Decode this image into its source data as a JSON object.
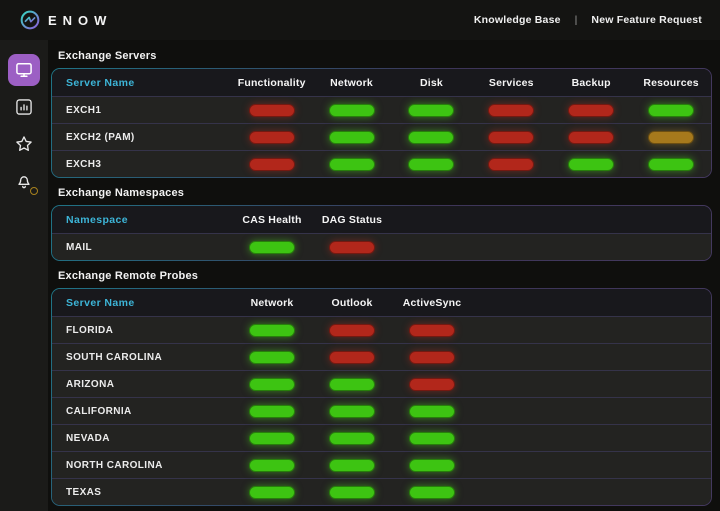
{
  "header": {
    "brand": "ENOW",
    "links": [
      {
        "label": "Knowledge Base"
      },
      {
        "label": "New Feature Request"
      }
    ],
    "divider": "|"
  },
  "sidebar": {
    "items": [
      {
        "id": "dashboard",
        "icon": "monitor-icon",
        "active": true,
        "badge": false
      },
      {
        "id": "reports",
        "icon": "bar-chart-icon",
        "active": false,
        "badge": false
      },
      {
        "id": "favorites",
        "icon": "star-icon",
        "active": false,
        "badge": false
      },
      {
        "id": "alerts",
        "icon": "bell-icon",
        "active": false,
        "badge": true
      }
    ]
  },
  "colors": {
    "green": "#3dc412",
    "red": "#b2271b",
    "yellow": "#a6791c",
    "accent_purple": "#9c5fc4",
    "accent_teal": "#3db5d8",
    "badge_gold": "#a8821e"
  },
  "sections": [
    {
      "title": "Exchange Servers",
      "name_header": "Server Name",
      "columns": [
        "Functionality",
        "Network",
        "Disk",
        "Services",
        "Backup",
        "Resources"
      ],
      "rows": [
        {
          "name": "EXCH1",
          "statuses": [
            "red",
            "green",
            "green",
            "red",
            "red",
            "green"
          ]
        },
        {
          "name": "EXCH2 (PAM)",
          "statuses": [
            "red",
            "green",
            "green",
            "red",
            "red",
            "yellow"
          ]
        },
        {
          "name": "EXCH3",
          "statuses": [
            "red",
            "green",
            "green",
            "red",
            "green",
            "green"
          ]
        }
      ]
    },
    {
      "title": "Exchange Namespaces",
      "name_header": "Namespace",
      "columns": [
        "CAS Health",
        "DAG Status"
      ],
      "rows": [
        {
          "name": "MAIL",
          "statuses": [
            "green",
            "red"
          ]
        }
      ]
    },
    {
      "title": "Exchange Remote Probes",
      "name_header": "Server Name",
      "columns": [
        "Network",
        "Outlook",
        "ActiveSync"
      ],
      "rows": [
        {
          "name": "FLORIDA",
          "statuses": [
            "green",
            "red",
            "red"
          ]
        },
        {
          "name": "SOUTH CAROLINA",
          "statuses": [
            "green",
            "red",
            "red"
          ]
        },
        {
          "name": "ARIZONA",
          "statuses": [
            "green",
            "green",
            "red"
          ]
        },
        {
          "name": "CALIFORNIA",
          "statuses": [
            "green",
            "green",
            "green"
          ]
        },
        {
          "name": "NEVADA",
          "statuses": [
            "green",
            "green",
            "green"
          ]
        },
        {
          "name": "NORTH CAROLINA",
          "statuses": [
            "green",
            "green",
            "green"
          ]
        },
        {
          "name": "TEXAS",
          "statuses": [
            "green",
            "green",
            "green"
          ]
        }
      ]
    }
  ]
}
